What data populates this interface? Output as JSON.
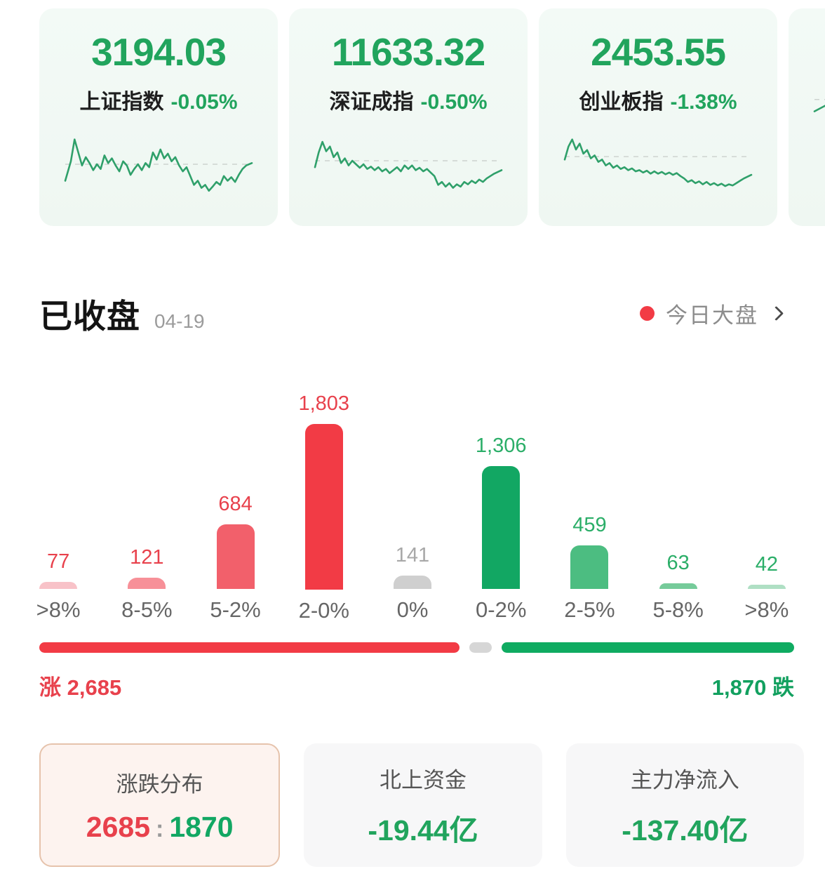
{
  "index_cards": [
    {
      "name": "上证指数",
      "value": "3194.03",
      "change": "-0.05%",
      "sparkline": [
        [
          0,
          78
        ],
        [
          3,
          45
        ],
        [
          5,
          8
        ],
        [
          7,
          30
        ],
        [
          9,
          52
        ],
        [
          11,
          38
        ],
        [
          13,
          48
        ],
        [
          15,
          60
        ],
        [
          17,
          50
        ],
        [
          19,
          58
        ],
        [
          21,
          35
        ],
        [
          23,
          48
        ],
        [
          25,
          40
        ],
        [
          27,
          52
        ],
        [
          29,
          62
        ],
        [
          31,
          45
        ],
        [
          33,
          52
        ],
        [
          35,
          68
        ],
        [
          37,
          58
        ],
        [
          39,
          50
        ],
        [
          41,
          60
        ],
        [
          43,
          48
        ],
        [
          45,
          55
        ],
        [
          47,
          30
        ],
        [
          49,
          42
        ],
        [
          51,
          25
        ],
        [
          53,
          40
        ],
        [
          55,
          32
        ],
        [
          57,
          45
        ],
        [
          59,
          38
        ],
        [
          61,
          52
        ],
        [
          63,
          62
        ],
        [
          65,
          55
        ],
        [
          67,
          70
        ],
        [
          69,
          85
        ],
        [
          71,
          78
        ],
        [
          73,
          90
        ],
        [
          75,
          85
        ],
        [
          77,
          95
        ],
        [
          79,
          88
        ],
        [
          81,
          80
        ],
        [
          83,
          85
        ],
        [
          85,
          70
        ],
        [
          87,
          78
        ],
        [
          89,
          72
        ],
        [
          91,
          80
        ],
        [
          93,
          68
        ],
        [
          95,
          58
        ],
        [
          97,
          52
        ],
        [
          100,
          48
        ]
      ],
      "baseline_y": 50
    },
    {
      "name": "深证成指",
      "value": "11633.32",
      "change": "-0.50%",
      "sparkline": [
        [
          0,
          55
        ],
        [
          2,
          30
        ],
        [
          4,
          12
        ],
        [
          6,
          28
        ],
        [
          8,
          20
        ],
        [
          10,
          38
        ],
        [
          12,
          30
        ],
        [
          14,
          48
        ],
        [
          16,
          40
        ],
        [
          18,
          52
        ],
        [
          20,
          44
        ],
        [
          22,
          50
        ],
        [
          24,
          56
        ],
        [
          26,
          50
        ],
        [
          28,
          58
        ],
        [
          30,
          54
        ],
        [
          32,
          60
        ],
        [
          34,
          55
        ],
        [
          36,
          62
        ],
        [
          38,
          58
        ],
        [
          40,
          65
        ],
        [
          42,
          60
        ],
        [
          44,
          55
        ],
        [
          46,
          62
        ],
        [
          48,
          52
        ],
        [
          50,
          58
        ],
        [
          52,
          52
        ],
        [
          54,
          60
        ],
        [
          56,
          56
        ],
        [
          58,
          62
        ],
        [
          60,
          58
        ],
        [
          62,
          64
        ],
        [
          64,
          70
        ],
        [
          66,
          85
        ],
        [
          68,
          80
        ],
        [
          70,
          88
        ],
        [
          72,
          82
        ],
        [
          74,
          90
        ],
        [
          76,
          84
        ],
        [
          78,
          88
        ],
        [
          80,
          80
        ],
        [
          82,
          84
        ],
        [
          84,
          78
        ],
        [
          86,
          82
        ],
        [
          88,
          76
        ],
        [
          90,
          80
        ],
        [
          92,
          74
        ],
        [
          94,
          70
        ],
        [
          96,
          66
        ],
        [
          100,
          60
        ]
      ],
      "baseline_y": 44
    },
    {
      "name": "创业板指",
      "value": "2453.55",
      "change": "-1.38%",
      "sparkline": [
        [
          0,
          42
        ],
        [
          2,
          20
        ],
        [
          4,
          8
        ],
        [
          6,
          25
        ],
        [
          8,
          15
        ],
        [
          10,
          32
        ],
        [
          12,
          26
        ],
        [
          14,
          40
        ],
        [
          16,
          35
        ],
        [
          18,
          46
        ],
        [
          20,
          42
        ],
        [
          22,
          52
        ],
        [
          24,
          48
        ],
        [
          26,
          56
        ],
        [
          28,
          52
        ],
        [
          30,
          58
        ],
        [
          32,
          55
        ],
        [
          34,
          60
        ],
        [
          36,
          57
        ],
        [
          38,
          62
        ],
        [
          40,
          60
        ],
        [
          42,
          64
        ],
        [
          44,
          61
        ],
        [
          46,
          66
        ],
        [
          48,
          62
        ],
        [
          50,
          66
        ],
        [
          52,
          63
        ],
        [
          54,
          67
        ],
        [
          56,
          64
        ],
        [
          58,
          68
        ],
        [
          60,
          65
        ],
        [
          62,
          70
        ],
        [
          64,
          74
        ],
        [
          66,
          80
        ],
        [
          68,
          77
        ],
        [
          70,
          82
        ],
        [
          72,
          79
        ],
        [
          74,
          84
        ],
        [
          76,
          80
        ],
        [
          78,
          85
        ],
        [
          80,
          82
        ],
        [
          82,
          86
        ],
        [
          84,
          83
        ],
        [
          86,
          87
        ],
        [
          88,
          84
        ],
        [
          90,
          86
        ],
        [
          92,
          82
        ],
        [
          94,
          78
        ],
        [
          96,
          74
        ],
        [
          100,
          68
        ]
      ],
      "baseline_y": 37
    },
    {
      "name": "",
      "value": "",
      "change": "",
      "sparkline": [
        [
          0,
          65
        ],
        [
          15,
          40
        ],
        [
          30,
          15
        ],
        [
          45,
          38
        ],
        [
          60,
          28
        ],
        [
          80,
          40
        ],
        [
          100,
          48
        ]
      ],
      "baseline_y": 45
    }
  ],
  "header": {
    "status": "已收盘",
    "date": "04-19",
    "market_link": "今日大盘"
  },
  "chart_data": {
    "type": "bar",
    "title": "",
    "categories": [
      ">8%",
      "8-5%",
      "5-2%",
      "2-0%",
      "0%",
      "0-2%",
      "2-5%",
      "5-8%",
      ">8%"
    ],
    "values": [
      77,
      121,
      684,
      1803,
      141,
      1306,
      459,
      63,
      42
    ],
    "value_labels": [
      "77",
      "121",
      "684",
      "1,803",
      "141",
      "1,306",
      "459",
      "63",
      "42"
    ],
    "bar_colors": [
      "#F8C2C8",
      "#F79098",
      "#F2606B",
      "#F23B45",
      "#CFCFCF",
      "#12A763",
      "#4CBD81",
      "#76CB9A",
      "#AFDFC4"
    ],
    "label_colors": [
      "#E8414C",
      "#E8414C",
      "#E8414C",
      "#E8414C",
      "#A8A8A8",
      "#2BAE68",
      "#2BAE68",
      "#2BAE68",
      "#2BAE68"
    ],
    "xlabel": "",
    "ylabel": "",
    "ylim": [
      0,
      1803
    ],
    "grid": false,
    "legend": false
  },
  "ratio_bar": {
    "advancers": 2685,
    "unchanged": 141,
    "decliners": 1870,
    "advancers_label": "涨 2,685",
    "decliners_label": "1,870 跌",
    "colors": {
      "up": "#F23B45",
      "flat": "#D6D6D6",
      "down": "#0FAB61"
    }
  },
  "summary_cards": [
    {
      "title": "涨跌分布",
      "value_up": "2685",
      "separator": ":",
      "value_down": "1870"
    },
    {
      "title": "北上资金",
      "value": "-19.44亿"
    },
    {
      "title": "主力净流入",
      "value": "-137.40亿"
    }
  ],
  "colors": {
    "index_green": "#21A45D",
    "sparkline_green": "#2FA06A",
    "card_mint_bg": "#F2F9F4",
    "up_red": "#F23B45",
    "down_green": "#12A763"
  }
}
